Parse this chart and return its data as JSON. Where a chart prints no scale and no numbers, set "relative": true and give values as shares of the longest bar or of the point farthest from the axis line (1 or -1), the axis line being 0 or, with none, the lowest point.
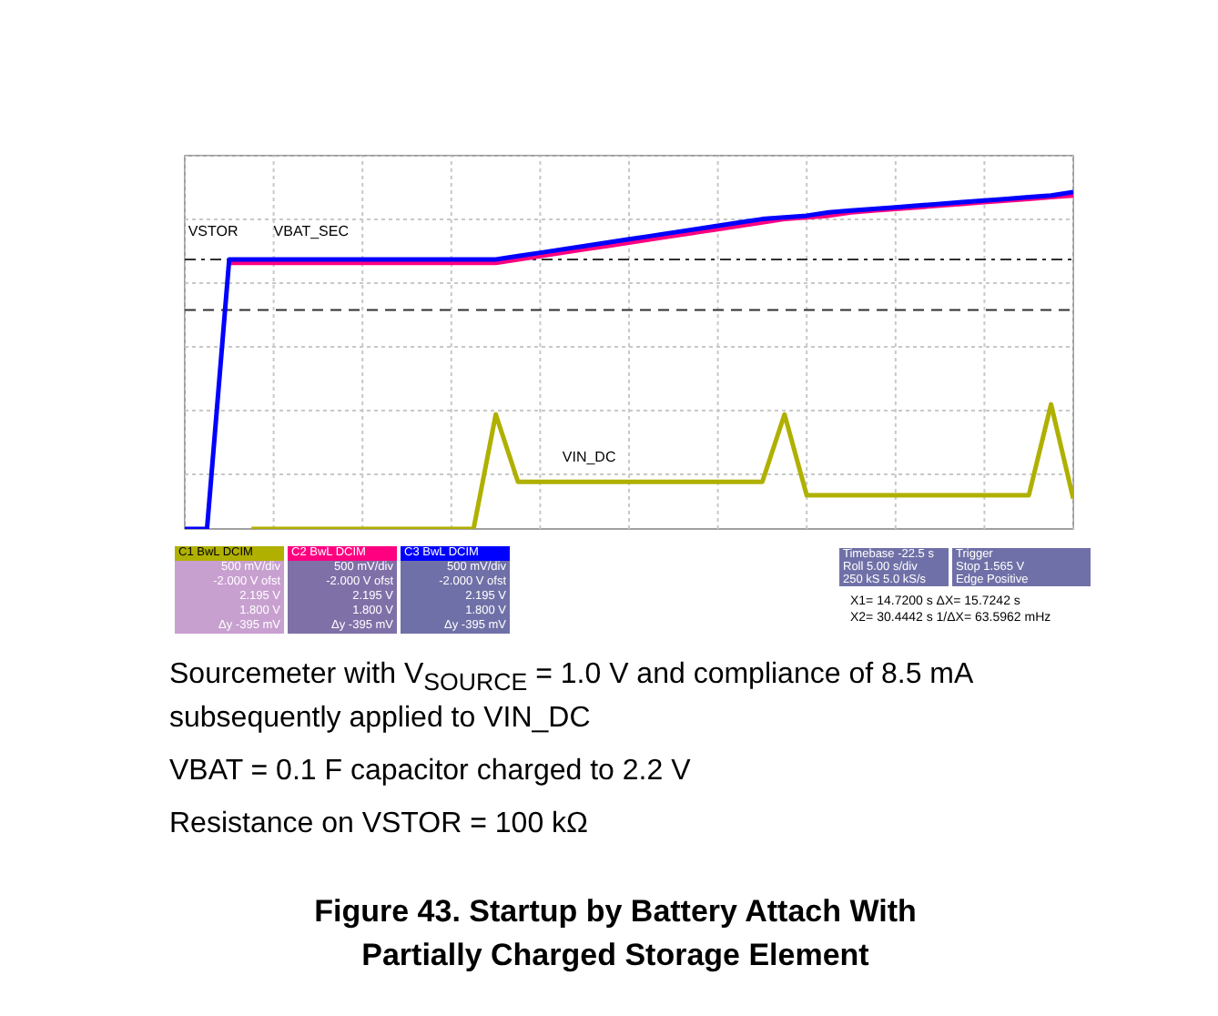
{
  "chart_data": {
    "type": "line",
    "relative": true,
    "title": "Figure 43. Startup by Battery Attach With Partially Charged Storage Element",
    "categories": [
      null,
      null,
      null,
      null,
      null,
      null,
      null,
      null,
      null,
      null,
      null,
      null,
      null,
      null,
      null,
      null,
      null,
      null,
      null,
      null,
      null,
      null,
      null,
      null,
      null,
      null,
      null,
      null,
      null,
      null,
      null,
      null,
      null,
      null,
      null,
      null,
      null,
      null,
      null,
      null,
      null
    ],
    "series": [
      {
        "name": "VBAT_SEC",
        "color": "#ff0080",
        "values": [
          null,
          null,
          0.79,
          0.79,
          0.79,
          0.79,
          0.79,
          0.79,
          0.79,
          0.79,
          0.79,
          0.79,
          0.79,
          0.79,
          0.79,
          0.8,
          0.81,
          0.82,
          0.83,
          0.84,
          0.85,
          0.86,
          0.87,
          0.88,
          0.89,
          0.9,
          0.91,
          0.92,
          0.925,
          0.93,
          0.94,
          0.945,
          0.95,
          0.955,
          0.96,
          0.965,
          0.97,
          0.975,
          0.98,
          0.985,
          0.99
        ]
      },
      {
        "name": "VSTOR",
        "color": "#0000ff",
        "values": [
          0,
          0,
          0.8,
          0.8,
          0.8,
          0.8,
          0.8,
          0.8,
          0.8,
          0.8,
          0.8,
          0.8,
          0.8,
          0.8,
          0.8,
          0.81,
          0.82,
          0.83,
          0.84,
          0.85,
          0.86,
          0.87,
          0.88,
          0.89,
          0.9,
          0.91,
          0.92,
          0.925,
          0.93,
          0.94,
          0.945,
          0.95,
          0.955,
          0.96,
          0.965,
          0.97,
          0.975,
          0.98,
          0.985,
          0.99,
          1.0
        ]
      },
      {
        "name": "VIN_DC",
        "color": "#b0b000",
        "values": [
          null,
          null,
          null,
          0,
          0,
          0,
          0,
          0,
          0,
          0,
          0,
          0,
          0,
          0,
          0.34,
          0.14,
          0.14,
          0.14,
          0.14,
          0.14,
          0.14,
          0.14,
          0.14,
          0.14,
          0.14,
          0.14,
          0.14,
          0.34,
          0.1,
          0.1,
          0.1,
          0.1,
          0.1,
          0.1,
          0.1,
          0.1,
          0.1,
          0.1,
          0.1,
          0.37,
          0.09
        ]
      }
    ],
    "ref_lines": [
      {
        "axis": "y",
        "value": 0.8,
        "line_style": "dashdot"
      },
      {
        "axis": "y",
        "value": 0.65,
        "line_style": "dashed"
      }
    ],
    "grid": true,
    "legend": false,
    "line_style": "solid",
    "marker": "none",
    "annotations": [
      "C1  BwL  DCIM\n500 mV/div\n-2.000 V ofst\n2.195 V\n1.800 V\nΔy  -395 mV",
      "C2  BwL  DCIM\n500 mV/div\n-2.000 V ofst\n2.195 V\n1.800 V\nΔy  -395 mV",
      "C3  BwL  DCIM\n500 mV/div\n-2.000 V ofst\n2.195 V\n1.800 V\nΔy  -395 mV",
      "Timebase  -22.5 s\nRoll  5.00 s/div\n250 kS  5.0 kS/s",
      "Trigger\nStop  1.565 V\nEdge  Positive",
      "X1= 14.7200 s   ΔX= 15.7242 s\nX2= 30.4442 s   1/ΔX= 63.5962 mHz",
      "Sourcemeter with V$_{SOURCE}$ = 1.0 V and compliance of 8.5 mA subsequently applied to VIN_DC",
      "VBAT = 0.1 F capacitor charged to 2.2 V",
      "Resistance on VSTOR = 100 kΩ"
    ]
  }
}
